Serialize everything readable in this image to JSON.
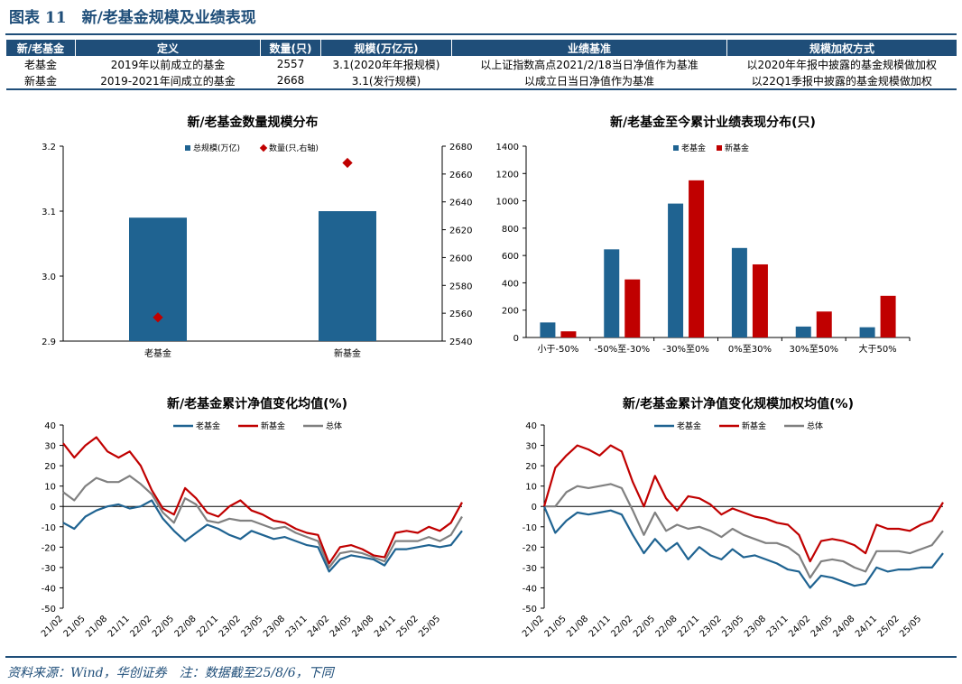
{
  "figure_title": "图表 11　新/老基金规模及业绩表现",
  "colors": {
    "navy": "#1f4e79",
    "old": "#1f6391",
    "new": "#c00000",
    "total": "#808080"
  },
  "table": {
    "headers": [
      "新/老基金",
      "定义",
      "数量(只)",
      "规模(万亿元)",
      "业绩基准",
      "规模加权方式"
    ],
    "rows": [
      [
        "老基金",
        "2019年以前成立的基金",
        "2557",
        "3.1(2020年年报规模)",
        "以上证指数高点2021/2/18当日净值作为基准",
        "以2020年年报中披露的基金规模做加权"
      ],
      [
        "新基金",
        "2019-2021年间成立的基金",
        "2668",
        "3.1(发行规模)",
        "以成立日当日净值作为基准",
        "以22Q1季报中披露的基金规模做加权"
      ]
    ]
  },
  "footer": "资料来源：Wind，华创证券　注：数据截至25/8/6，下同",
  "chart_data": [
    {
      "type": "bar",
      "title": "新/老基金数量规模分布",
      "categories": [
        "老基金",
        "新基金"
      ],
      "series": [
        {
          "name": "总规模(万亿)",
          "axis": "left",
          "kind": "bar",
          "values": [
            3.09,
            3.1
          ]
        },
        {
          "name": "数量(只,右轴)",
          "axis": "right",
          "kind": "marker",
          "values": [
            2557,
            2668
          ]
        }
      ],
      "ylim": [
        2.9,
        3.2
      ],
      "yticks": [
        "2.9",
        "3.0",
        "3.1",
        "3.2"
      ],
      "y2lim": [
        2540,
        2680
      ],
      "y2ticks": [
        "2540",
        "2560",
        "2580",
        "2600",
        "2620",
        "2640",
        "2660",
        "2680"
      ],
      "legend": [
        "总规模(万亿)",
        "数量(只,右轴)"
      ]
    },
    {
      "type": "bar",
      "title": "新/老基金至今累计业绩表现分布(只)",
      "categories": [
        "小于-50%",
        "-50%至-30%",
        "-30%至0%",
        "0%至30%",
        "30%至50%",
        "大于50%"
      ],
      "series": [
        {
          "name": "老基金",
          "values": [
            110,
            645,
            980,
            655,
            80,
            75
          ]
        },
        {
          "name": "新基金",
          "values": [
            45,
            425,
            1150,
            535,
            190,
            305
          ]
        }
      ],
      "ylim": [
        0,
        1400
      ],
      "yticks": [
        "0",
        "200",
        "400",
        "600",
        "800",
        "1000",
        "1200",
        "1400"
      ],
      "legend": [
        "老基金",
        "新基金"
      ]
    },
    {
      "type": "line",
      "title": "新/老基金累计净值变化均值(%)",
      "x_range": [
        "21/02",
        "25/08"
      ],
      "xticks": [
        "21/02",
        "21/05",
        "21/08",
        "21/11",
        "22/02",
        "22/05",
        "22/08",
        "22/11",
        "23/02",
        "23/05",
        "23/08",
        "23/11",
        "24/02",
        "24/05",
        "24/08",
        "24/11",
        "25/02",
        "25/05"
      ],
      "ylim": [
        -50,
        40
      ],
      "yticks": [
        "-50",
        "-40",
        "-30",
        "-20",
        "-10",
        "0",
        "10",
        "20",
        "30",
        "40"
      ],
      "series": [
        {
          "name": "老基金",
          "values": [
            -8,
            -11,
            -5,
            -2,
            0,
            1,
            -1,
            0,
            3,
            -6,
            -12,
            -17,
            -13,
            -9,
            -11,
            -14,
            -16,
            -12,
            -14,
            -16,
            -15,
            -17,
            -19,
            -20,
            -32,
            -26,
            -24,
            -25,
            -26,
            -29,
            -21,
            -21,
            -20,
            -19,
            -20,
            -19,
            -12
          ]
        },
        {
          "name": "新基金",
          "values": [
            31,
            24,
            30,
            34,
            27,
            24,
            27,
            20,
            8,
            -1,
            -4,
            9,
            4,
            -3,
            -5,
            0,
            3,
            -2,
            -4,
            -7,
            -8,
            -11,
            -13,
            -14,
            -28,
            -20,
            -19,
            -21,
            -24,
            -25,
            -13,
            -12,
            -13,
            -10,
            -12,
            -8,
            2
          ]
        },
        {
          "name": "总体",
          "values": [
            7,
            3,
            10,
            14,
            12,
            12,
            15,
            11,
            6,
            -3,
            -8,
            4,
            1,
            -7,
            -8,
            -6,
            -7,
            -7,
            -9,
            -11,
            -10,
            -13,
            -15,
            -17,
            -30,
            -23,
            -22,
            -23,
            -25,
            -27,
            -17,
            -17,
            -17,
            -15,
            -17,
            -14,
            -5
          ]
        }
      ],
      "legend": [
        "老基金",
        "新基金",
        "总体"
      ]
    },
    {
      "type": "line",
      "title": "新/老基金累计净值变化规模加权均值(%)",
      "x_range": [
        "21/02",
        "25/08"
      ],
      "xticks": [
        "21/02",
        "21/05",
        "21/08",
        "21/11",
        "22/02",
        "22/05",
        "22/08",
        "22/11",
        "23/02",
        "23/05",
        "23/08",
        "23/11",
        "24/02",
        "24/05",
        "24/08",
        "24/11",
        "25/02",
        "25/05"
      ],
      "ylim": [
        -50,
        40
      ],
      "yticks": [
        "-50",
        "-40",
        "-30",
        "-20",
        "-10",
        "0",
        "10",
        "20",
        "30",
        "40"
      ],
      "series": [
        {
          "name": "老基金",
          "values": [
            0,
            -13,
            -7,
            -3,
            -4,
            -3,
            -2,
            -4,
            -14,
            -23,
            -16,
            -22,
            -18,
            -26,
            -20,
            -24,
            -26,
            -21,
            -25,
            -24,
            -26,
            -28,
            -31,
            -32,
            -40,
            -34,
            -35,
            -37,
            -39,
            -38,
            -30,
            -32,
            -31,
            -31,
            -30,
            -30,
            -23
          ]
        },
        {
          "name": "新基金",
          "values": [
            0,
            19,
            25,
            30,
            28,
            25,
            30,
            27,
            12,
            0,
            15,
            4,
            -2,
            5,
            4,
            1,
            -4,
            -1,
            -3,
            -5,
            -6,
            -8,
            -9,
            -14,
            -27,
            -17,
            -16,
            -17,
            -19,
            -23,
            -9,
            -11,
            -11,
            -12,
            -9,
            -7,
            2
          ]
        },
        {
          "name": "总体",
          "values": [
            0,
            0,
            7,
            10,
            9,
            10,
            11,
            9,
            -2,
            -14,
            -3,
            -12,
            -9,
            -11,
            -10,
            -12,
            -15,
            -11,
            -14,
            -16,
            -18,
            -18,
            -20,
            -24,
            -35,
            -27,
            -26,
            -27,
            -30,
            -32,
            -22,
            -22,
            -22,
            -23,
            -21,
            -19,
            -12
          ]
        }
      ],
      "legend": [
        "老基金",
        "新基金",
        "总体"
      ]
    }
  ]
}
